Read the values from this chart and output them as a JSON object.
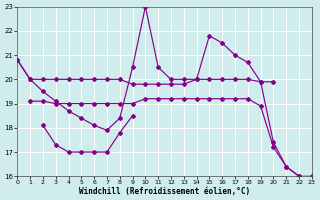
{
  "xlabel": "Windchill (Refroidissement éolien,°C)",
  "bg_color": "#d0ecec",
  "line_color": "#880088",
  "grid_color": "#ffffff",
  "xlim": [
    0,
    23
  ],
  "ylim": [
    16,
    23
  ],
  "yticks": [
    16,
    17,
    18,
    19,
    20,
    21,
    22,
    23
  ],
  "xticks": [
    0,
    1,
    2,
    3,
    4,
    5,
    6,
    7,
    8,
    9,
    10,
    11,
    12,
    13,
    14,
    15,
    16,
    17,
    18,
    19,
    20,
    21,
    22,
    23
  ],
  "lines": [
    {
      "x": [
        0,
        1,
        2,
        3,
        4,
        5,
        6,
        7,
        8,
        9,
        10,
        11,
        12,
        13,
        14,
        15,
        16,
        17,
        18,
        19,
        20,
        21,
        22,
        23
      ],
      "y": [
        20.8,
        20.0,
        19.5,
        19.1,
        18.7,
        18.4,
        18.1,
        17.9,
        18.4,
        20.5,
        23.0,
        20.5,
        20.0,
        20.0,
        20.0,
        21.8,
        21.5,
        21.0,
        20.7,
        19.9,
        17.4,
        16.4,
        16.0,
        16.0
      ]
    },
    {
      "x": [
        0,
        1,
        2,
        3,
        4,
        5,
        6,
        7,
        8,
        9,
        10,
        11,
        12,
        13,
        14,
        15,
        16,
        17,
        18,
        19,
        20
      ],
      "y": [
        20.8,
        20.0,
        20.0,
        20.0,
        20.0,
        20.0,
        20.0,
        20.0,
        20.0,
        19.8,
        19.8,
        19.8,
        19.8,
        19.8,
        20.0,
        20.0,
        20.0,
        20.0,
        20.0,
        19.9,
        19.9
      ]
    },
    {
      "x": [
        1,
        2,
        3,
        4,
        5,
        6,
        7,
        8,
        9,
        10,
        11,
        12,
        13,
        14,
        15,
        16,
        17,
        18,
        19,
        20,
        21,
        22
      ],
      "y": [
        19.1,
        19.1,
        19.0,
        19.0,
        19.0,
        19.0,
        19.0,
        19.0,
        19.0,
        19.2,
        19.2,
        19.2,
        19.2,
        19.2,
        19.2,
        19.2,
        19.2,
        19.2,
        18.9,
        17.2,
        16.4,
        16.0
      ]
    },
    {
      "comment": "Lower curve 18->17->18.5",
      "x": [
        2,
        3,
        4,
        5,
        6,
        7,
        8,
        9
      ],
      "y": [
        18.1,
        17.3,
        17.0,
        17.0,
        17.0,
        17.0,
        17.8,
        18.5
      ]
    }
  ]
}
